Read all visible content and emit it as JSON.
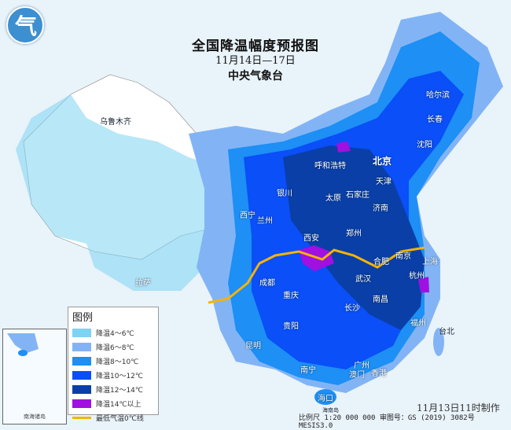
{
  "title": "全国降温幅度预报图",
  "date_range": "11月14日—17日",
  "issuer": "中央气象台",
  "legend": {
    "title": "图例",
    "items": [
      {
        "label": "降温4～6℃",
        "color": "#7dd3f2"
      },
      {
        "label": "降温6～8℃",
        "color": "#82b4f5"
      },
      {
        "label": "降温8～10℃",
        "color": "#1d8ff5"
      },
      {
        "label": "降温10～12℃",
        "color": "#0a4ff7"
      },
      {
        "label": "降温12～14℃",
        "color": "#0a3fa8"
      },
      {
        "label": "降温14℃以上",
        "color": "#a010e0"
      },
      {
        "label": "最低气温0℃线",
        "color": "#f5b400"
      }
    ]
  },
  "cities": [
    "乌鲁木齐",
    "哈尔滨",
    "长春",
    "沈阳",
    "呼和浩特",
    "北京",
    "天津",
    "银川",
    "太原",
    "石家庄",
    "西宁",
    "兰州",
    "济南",
    "郑州",
    "西安",
    "合肥",
    "南京",
    "上海",
    "拉萨",
    "成都",
    "武汉",
    "杭州",
    "重庆",
    "长沙",
    "南昌",
    "贵阳",
    "福州",
    "台北",
    "昆明",
    "南宁",
    "广州",
    "澳门",
    "香港",
    "海口",
    "海南岛"
  ],
  "inset_label": "南海诸岛",
  "made_time": "11月13日11时制作",
  "footer": "比例尺 1:20 000 000  审图号：GS (2019) 3082号 MESIS3.0"
}
